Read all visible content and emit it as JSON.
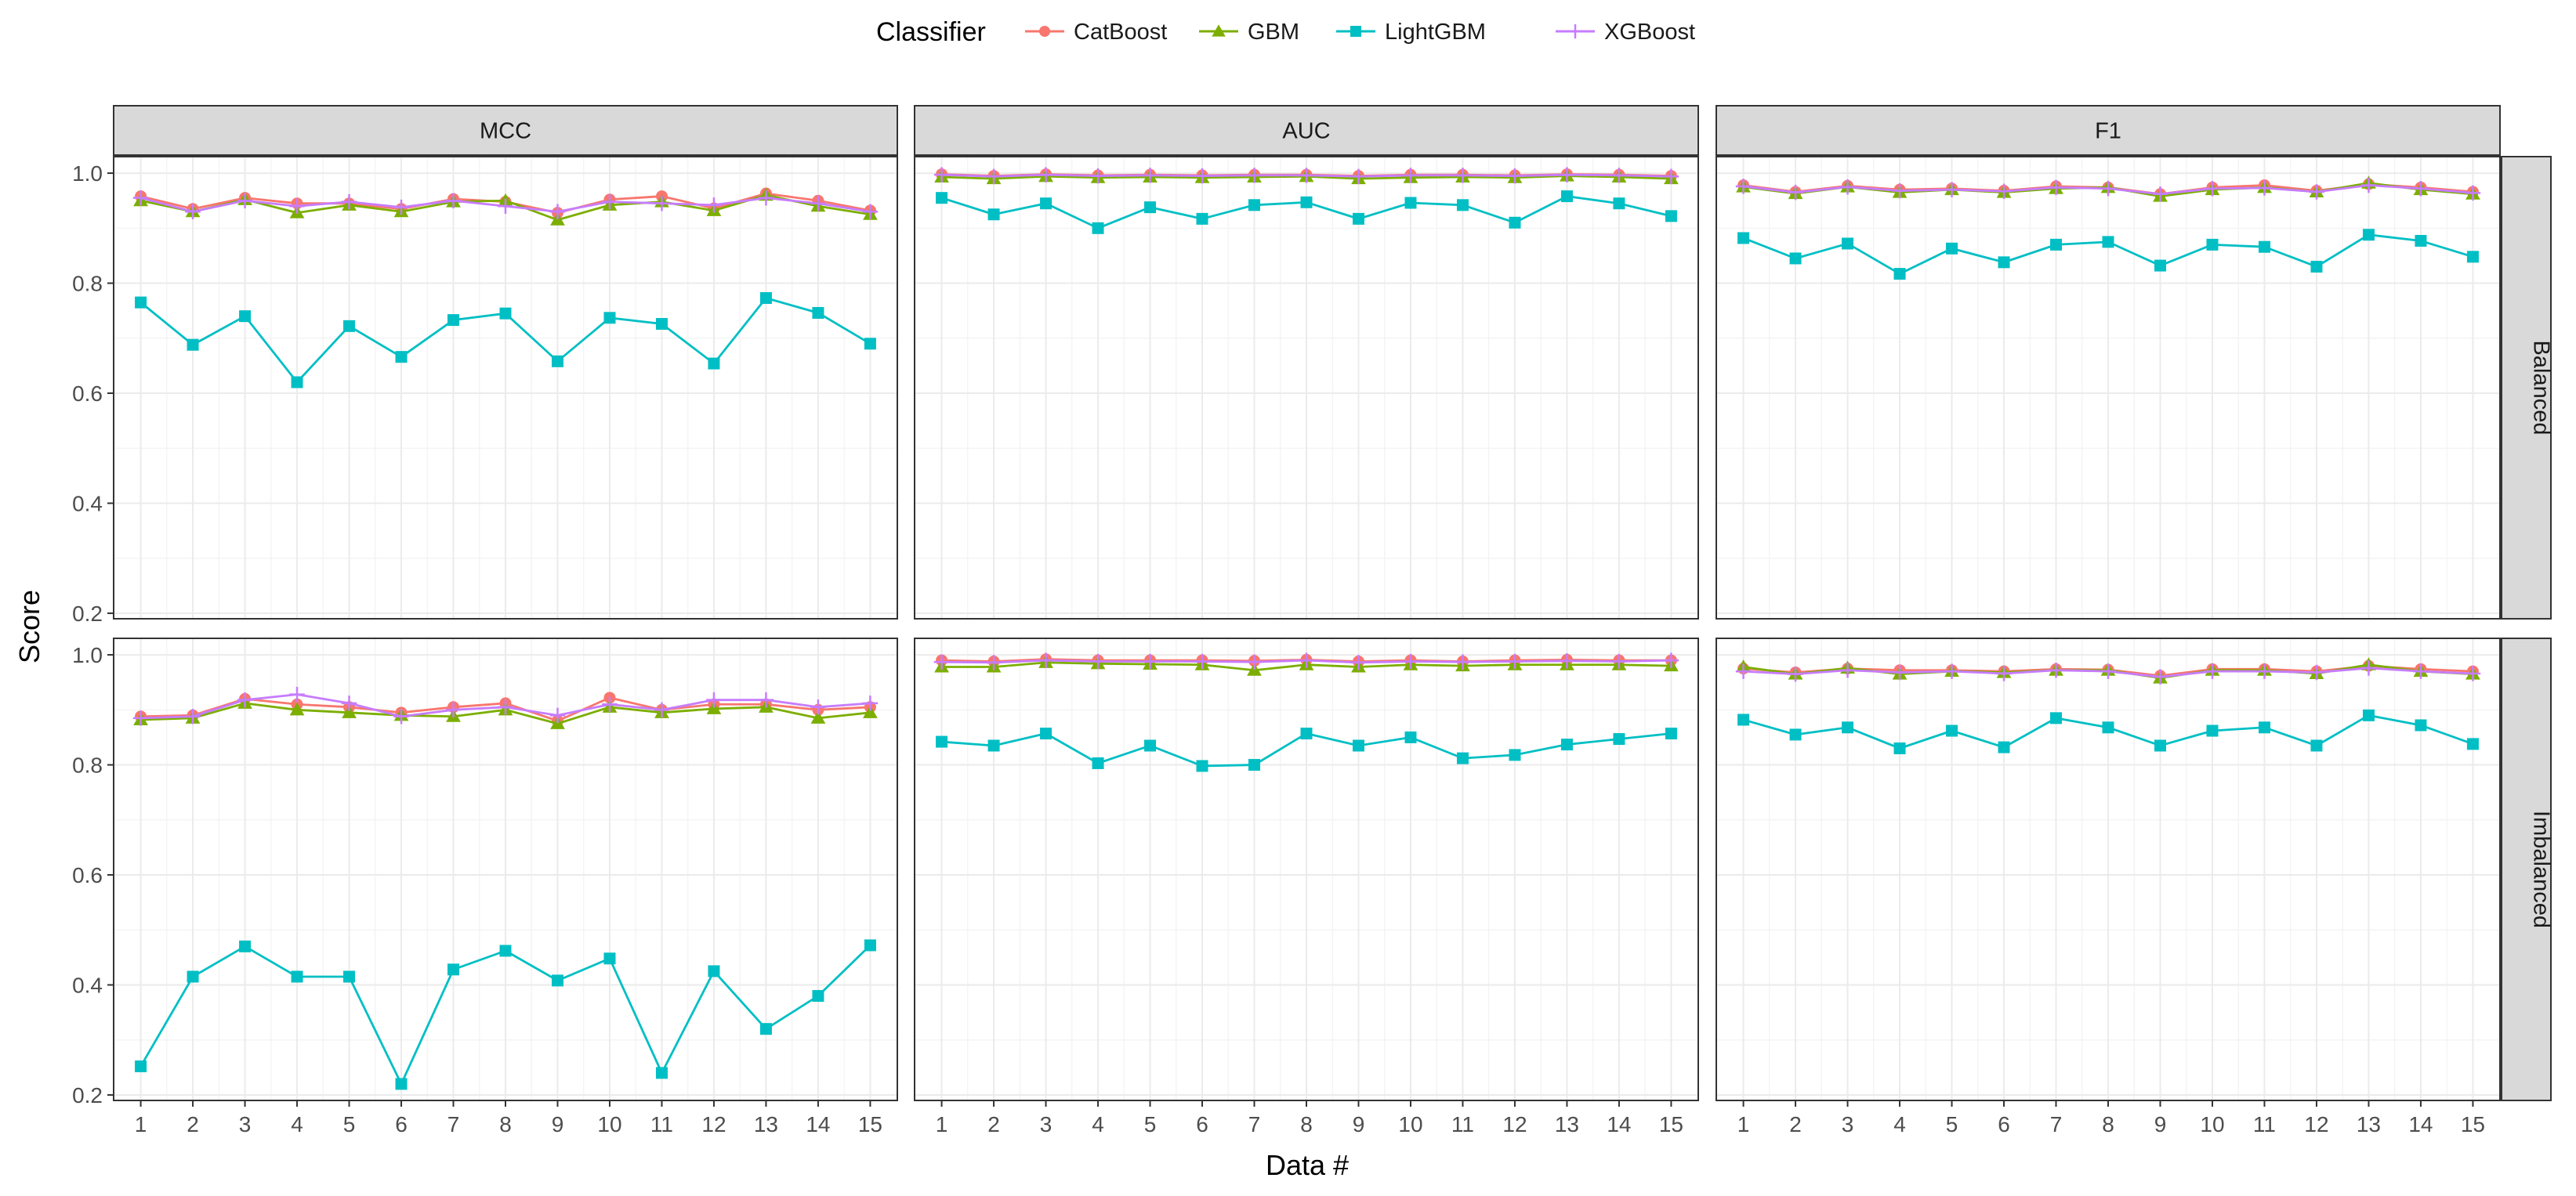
{
  "legend": {
    "title": "Classifier",
    "items": [
      {
        "name": "CatBoost",
        "color": "#F8766D",
        "shape": "circle"
      },
      {
        "name": "GBM",
        "color": "#7CAE00",
        "shape": "triangle"
      },
      {
        "name": "LightGBM",
        "color": "#00BFC4",
        "shape": "square"
      },
      {
        "name": "XGBoost",
        "color": "#C77CFF",
        "shape": "plus"
      }
    ]
  },
  "axes": {
    "xlabel": "Data #",
    "ylabel": "Score"
  },
  "facets": {
    "columns": [
      "MCC",
      "AUC",
      "F1"
    ],
    "rows": [
      "Balanced",
      "Imbalanced"
    ]
  },
  "chart_data": {
    "type": "line",
    "x": [
      1,
      2,
      3,
      4,
      5,
      6,
      7,
      8,
      9,
      10,
      11,
      12,
      13,
      14,
      15
    ],
    "x_ticks": [
      "1",
      "2",
      "3",
      "4",
      "5",
      "6",
      "7",
      "8",
      "9",
      "10",
      "11",
      "12",
      "13",
      "14",
      "15"
    ],
    "ylim": [
      0.19,
      1.03
    ],
    "y_ticks": [
      0.2,
      0.4,
      0.6,
      0.8,
      1.0
    ],
    "y_tick_labels": [
      "0.2",
      "0.4",
      "0.6",
      "0.8",
      "1.0"
    ],
    "grid": true,
    "legend_position": "top",
    "panels": [
      {
        "row": "Balanced",
        "column": "MCC",
        "series": {
          "CatBoost": [
            0.958,
            0.935,
            0.955,
            0.945,
            0.945,
            0.935,
            0.953,
            0.948,
            0.928,
            0.952,
            0.958,
            0.936,
            0.963,
            0.95,
            0.932
          ],
          "GBM": [
            0.95,
            0.93,
            0.952,
            0.928,
            0.942,
            0.93,
            0.948,
            0.95,
            0.915,
            0.942,
            0.948,
            0.932,
            0.96,
            0.94,
            0.925
          ],
          "LightGBM": [
            0.765,
            0.688,
            0.74,
            0.62,
            0.722,
            0.666,
            0.733,
            0.745,
            0.658,
            0.737,
            0.726,
            0.654,
            0.773,
            0.746,
            0.69
          ],
          "XGBoost": [
            0.955,
            0.93,
            0.95,
            0.94,
            0.948,
            0.938,
            0.95,
            0.94,
            0.93,
            0.948,
            0.945,
            0.942,
            0.955,
            0.945,
            0.93
          ]
        }
      },
      {
        "row": "Balanced",
        "column": "AUC",
        "series": {
          "CatBoost": [
            0.998,
            0.995,
            0.998,
            0.996,
            0.997,
            0.996,
            0.997,
            0.997,
            0.995,
            0.997,
            0.997,
            0.996,
            0.998,
            0.997,
            0.995
          ],
          "GBM": [
            0.993,
            0.99,
            0.994,
            0.992,
            0.993,
            0.992,
            0.993,
            0.994,
            0.99,
            0.992,
            0.993,
            0.992,
            0.995,
            0.993,
            0.99
          ],
          "LightGBM": [
            0.955,
            0.925,
            0.945,
            0.9,
            0.938,
            0.917,
            0.942,
            0.947,
            0.917,
            0.946,
            0.942,
            0.91,
            0.958,
            0.945,
            0.922
          ],
          "XGBoost": [
            0.997,
            0.994,
            0.997,
            0.995,
            0.996,
            0.995,
            0.996,
            0.996,
            0.994,
            0.996,
            0.996,
            0.995,
            0.997,
            0.996,
            0.994
          ]
        }
      },
      {
        "row": "Balanced",
        "column": "F1",
        "series": {
          "CatBoost": [
            0.978,
            0.966,
            0.977,
            0.97,
            0.972,
            0.968,
            0.976,
            0.974,
            0.962,
            0.974,
            0.978,
            0.968,
            0.98,
            0.974,
            0.966
          ],
          "GBM": [
            0.975,
            0.963,
            0.975,
            0.965,
            0.97,
            0.965,
            0.972,
            0.974,
            0.958,
            0.97,
            0.974,
            0.966,
            0.982,
            0.97,
            0.962
          ],
          "LightGBM": [
            0.882,
            0.845,
            0.872,
            0.817,
            0.863,
            0.838,
            0.87,
            0.875,
            0.832,
            0.87,
            0.866,
            0.83,
            0.888,
            0.877,
            0.848
          ],
          "XGBoost": [
            0.976,
            0.965,
            0.975,
            0.968,
            0.97,
            0.967,
            0.974,
            0.972,
            0.962,
            0.972,
            0.973,
            0.966,
            0.978,
            0.972,
            0.964
          ]
        }
      },
      {
        "row": "Imbalanced",
        "column": "MCC",
        "series": {
          "CatBoost": [
            0.888,
            0.89,
            0.92,
            0.91,
            0.905,
            0.895,
            0.905,
            0.912,
            0.88,
            0.922,
            0.9,
            0.91,
            0.91,
            0.9,
            0.905
          ],
          "GBM": [
            0.882,
            0.885,
            0.912,
            0.9,
            0.895,
            0.89,
            0.888,
            0.9,
            0.875,
            0.905,
            0.895,
            0.902,
            0.905,
            0.885,
            0.895
          ],
          "LightGBM": [
            0.252,
            0.415,
            0.47,
            0.415,
            0.415,
            0.22,
            0.428,
            0.462,
            0.408,
            0.448,
            0.24,
            0.425,
            0.32,
            0.38,
            0.472
          ],
          "XGBoost": [
            0.885,
            0.888,
            0.918,
            0.928,
            0.912,
            0.888,
            0.9,
            0.905,
            0.89,
            0.91,
            0.9,
            0.918,
            0.918,
            0.905,
            0.912
          ]
        }
      },
      {
        "row": "Imbalanced",
        "column": "AUC",
        "series": {
          "CatBoost": [
            0.99,
            0.988,
            0.992,
            0.99,
            0.99,
            0.99,
            0.989,
            0.991,
            0.988,
            0.99,
            0.988,
            0.99,
            0.991,
            0.99,
            0.99
          ],
          "GBM": [
            0.978,
            0.978,
            0.986,
            0.984,
            0.983,
            0.982,
            0.972,
            0.982,
            0.978,
            0.982,
            0.98,
            0.982,
            0.982,
            0.982,
            0.98
          ],
          "LightGBM": [
            0.842,
            0.835,
            0.857,
            0.803,
            0.835,
            0.798,
            0.8,
            0.857,
            0.835,
            0.85,
            0.812,
            0.818,
            0.837,
            0.847,
            0.857
          ],
          "XGBoost": [
            0.987,
            0.986,
            0.99,
            0.988,
            0.988,
            0.988,
            0.987,
            0.99,
            0.986,
            0.988,
            0.987,
            0.988,
            0.989,
            0.988,
            0.99
          ]
        }
      },
      {
        "row": "Imbalanced",
        "column": "F1",
        "series": {
          "CatBoost": [
            0.975,
            0.968,
            0.975,
            0.972,
            0.972,
            0.97,
            0.974,
            0.973,
            0.962,
            0.974,
            0.974,
            0.97,
            0.98,
            0.974,
            0.97
          ],
          "GBM": [
            0.978,
            0.965,
            0.976,
            0.965,
            0.97,
            0.968,
            0.972,
            0.972,
            0.958,
            0.972,
            0.972,
            0.966,
            0.982,
            0.97,
            0.965
          ],
          "LightGBM": [
            0.882,
            0.855,
            0.868,
            0.83,
            0.862,
            0.832,
            0.885,
            0.868,
            0.835,
            0.862,
            0.868,
            0.835,
            0.89,
            0.872,
            0.838
          ],
          "XGBoost": [
            0.97,
            0.965,
            0.972,
            0.968,
            0.97,
            0.966,
            0.972,
            0.97,
            0.96,
            0.97,
            0.97,
            0.968,
            0.976,
            0.97,
            0.966
          ]
        }
      }
    ]
  }
}
